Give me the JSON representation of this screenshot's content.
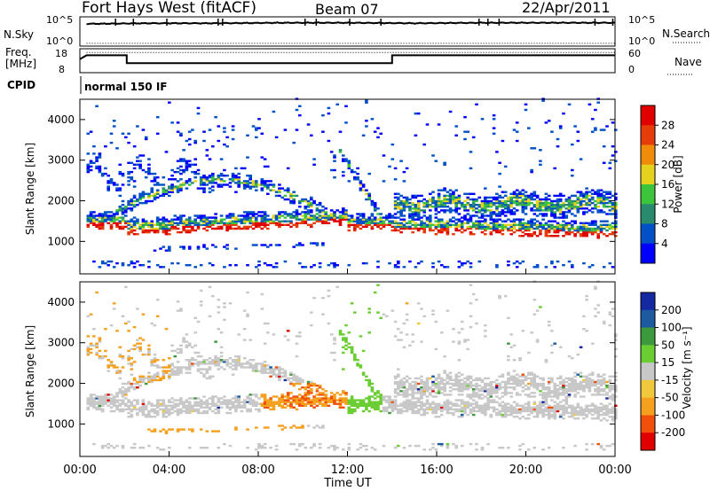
{
  "header": {
    "station": "Fort Hays West (fitACF)",
    "beam": "Beam 07",
    "date": "22/Apr/2011"
  },
  "top_panels": {
    "nsky_label": "N.Sky",
    "nsky_ticks": [
      "10^5",
      "10^0"
    ],
    "nsearch_label": "N.Search",
    "nsearch_ticks": [
      "10^5",
      "10^0"
    ],
    "freq_label_1": "Freq.",
    "freq_label_2": "[MHz]",
    "freq_ticks": [
      "18",
      "8"
    ],
    "nave_label": "Nave",
    "nave_ticks": [
      "60",
      "0"
    ],
    "cpid_label": "CPID",
    "cpid_value": "normal 150 IF"
  },
  "chart_data": [
    {
      "type": "line",
      "name": "N.Sky / N.Search",
      "x_unit_hours": true,
      "series": [
        {
          "values_log10": [
            [
              0,
              4.2
            ],
            [
              0.4,
              4.3
            ],
            [
              1,
              4.3
            ],
            [
              3,
              4.4
            ],
            [
              6,
              4.4
            ],
            [
              9,
              4.5
            ],
            [
              12,
              4.5
            ],
            [
              15,
              4.4
            ],
            [
              18,
              4.5
            ],
            [
              21,
              4.5
            ],
            [
              24,
              4.5
            ]
          ]
        },
        {
          "values_log10": [
            [
              0,
              0.2
            ],
            [
              24,
              0.2
            ]
          ]
        }
      ]
    },
    {
      "type": "line",
      "name": "Freq / Nave",
      "freq_ylim": [
        8,
        18
      ],
      "freq_steps": [
        [
          0,
          14
        ],
        [
          0.3,
          16
        ],
        [
          2.1,
          16
        ],
        [
          2.1,
          12
        ],
        [
          14.0,
          12
        ],
        [
          14.0,
          16
        ],
        [
          24,
          16
        ]
      ],
      "nave_value": 54
    },
    {
      "type": "heatmap",
      "title": "",
      "xlabel": "Time UT",
      "ylabel": "Slant Range [km]",
      "x_ticks": [
        "00:00",
        "04:00",
        "08:00",
        "12:00",
        "16:00",
        "20:00",
        "00:00"
      ],
      "y_ticks": [
        "1000",
        "2000",
        "3000",
        "4000"
      ],
      "xlim_hours": [
        0,
        24
      ],
      "ylim_km": [
        200,
        4500
      ],
      "colorbar_label": "Power [dB]",
      "colorbar_ticks": [
        "4",
        "8",
        "12",
        "16",
        "20",
        "24",
        "28"
      ],
      "colorbar_range": [
        0,
        30
      ],
      "colors": [
        "#0000ff",
        "#0050c8",
        "#2a8a6e",
        "#3cc43c",
        "#e6d21e",
        "#f08c0a",
        "#e63c0a",
        "#e00000"
      ]
    },
    {
      "type": "heatmap",
      "title": "",
      "xlabel": "Time UT",
      "ylabel": "Slant Range [km]",
      "x_ticks": [
        "00:00",
        "04:00",
        "08:00",
        "12:00",
        "16:00",
        "20:00",
        "00:00"
      ],
      "y_ticks": [
        "1000",
        "2000",
        "3000",
        "4000"
      ],
      "xlim_hours": [
        0,
        24
      ],
      "ylim_km": [
        200,
        4500
      ],
      "colorbar_label": "Velocity [m s⁻¹]",
      "colorbar_ticks": [
        "200",
        "100",
        "50",
        "15",
        "-15",
        "-50",
        "-100",
        "-200"
      ],
      "colors": [
        "#e00000",
        "#f0500a",
        "#f5a01e",
        "#f0c83c",
        "#c8c8c8",
        "#6acd32",
        "#3c9a3c",
        "#1e5aa0",
        "#1428a0"
      ]
    }
  ]
}
